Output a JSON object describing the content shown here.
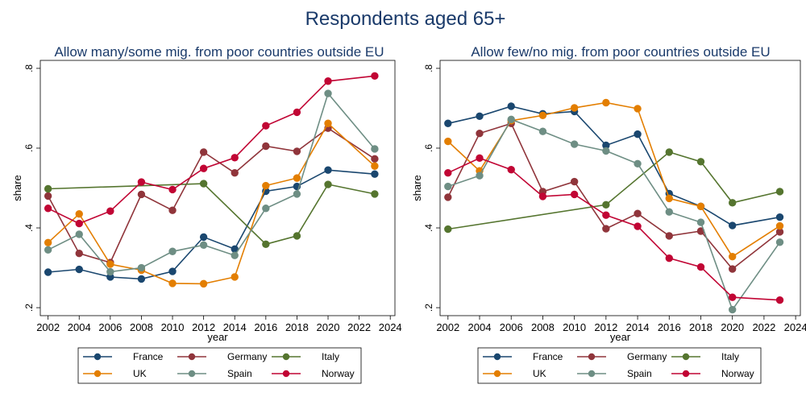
{
  "figure_title": "Respondents aged 65+",
  "chart_data": [
    {
      "type": "line",
      "title": "Allow many/some mig. from poor countries outside EU",
      "xlabel": "year",
      "ylabel": "share",
      "xlim": [
        2001.5,
        2024.3
      ],
      "ylim": [
        0.18,
        0.82
      ],
      "xticks": [
        2002,
        2004,
        2006,
        2008,
        2010,
        2012,
        2014,
        2016,
        2018,
        2020,
        2022,
        2024
      ],
      "xtick_labels": [
        "2002",
        "2004",
        "2006",
        "2008",
        "2010",
        "2012",
        "2014",
        "2016",
        "2018",
        "2020",
        "2022",
        "2024"
      ],
      "yticks": [
        0.2,
        0.4,
        0.6,
        0.8
      ],
      "ytick_labels": [
        ".2",
        ".4",
        ".6",
        ".8"
      ],
      "grid": false,
      "legend_position": "bottom",
      "series": [
        {
          "name": "France",
          "color": "#1a476f",
          "x": [
            2002,
            2004,
            2006,
            2008,
            2010,
            2012,
            2014,
            2016,
            2018,
            2020,
            2023
          ],
          "y": [
            0.289,
            0.296,
            0.277,
            0.272,
            0.291,
            0.377,
            0.347,
            0.492,
            0.504,
            0.545,
            0.535
          ]
        },
        {
          "name": "Germany",
          "color": "#90353b",
          "x": [
            2002,
            2004,
            2006,
            2008,
            2010,
            2012,
            2014,
            2016,
            2018,
            2020,
            2023
          ],
          "y": [
            0.48,
            0.336,
            0.313,
            0.484,
            0.444,
            0.59,
            0.538,
            0.605,
            0.592,
            0.65,
            0.573
          ]
        },
        {
          "name": "Italy",
          "color": "#55752f",
          "x": [
            2002,
            2012,
            2016,
            2018,
            2020,
            2023
          ],
          "y": [
            0.498,
            0.511,
            0.359,
            0.38,
            0.509,
            0.485
          ]
        },
        {
          "name": "UK",
          "color": "#e37e00",
          "x": [
            2002,
            2004,
            2006,
            2008,
            2010,
            2012,
            2014,
            2016,
            2018,
            2020,
            2023
          ],
          "y": [
            0.363,
            0.435,
            0.309,
            0.294,
            0.261,
            0.26,
            0.277,
            0.506,
            0.525,
            0.662,
            0.555
          ]
        },
        {
          "name": "Spain",
          "color": "#6e8e84",
          "x": [
            2002,
            2004,
            2006,
            2008,
            2010,
            2012,
            2014,
            2016,
            2018,
            2020,
            2023
          ],
          "y": [
            0.345,
            0.384,
            0.29,
            0.3,
            0.341,
            0.357,
            0.331,
            0.449,
            0.485,
            0.737,
            0.598
          ]
        },
        {
          "name": "Norway",
          "color": "#c10534",
          "x": [
            2002,
            2004,
            2006,
            2008,
            2010,
            2012,
            2014,
            2016,
            2018,
            2020,
            2023
          ],
          "y": [
            0.449,
            0.411,
            0.442,
            0.515,
            0.496,
            0.549,
            0.576,
            0.656,
            0.69,
            0.768,
            0.781
          ]
        }
      ]
    },
    {
      "type": "line",
      "title": "Allow few/no mig. from poor countries outside EU",
      "xlabel": "year",
      "ylabel": "share",
      "xlim": [
        2001.5,
        2024.3
      ],
      "ylim": [
        0.18,
        0.82
      ],
      "xticks": [
        2002,
        2004,
        2006,
        2008,
        2010,
        2012,
        2014,
        2016,
        2018,
        2020,
        2022,
        2024
      ],
      "xtick_labels": [
        "2002",
        "2004",
        "2006",
        "2008",
        "2010",
        "2012",
        "2014",
        "2016",
        "2018",
        "2020",
        "2022",
        "2024"
      ],
      "yticks": [
        0.2,
        0.4,
        0.6,
        0.8
      ],
      "ytick_labels": [
        ".2",
        ".4",
        ".6",
        ".8"
      ],
      "grid": false,
      "legend_position": "bottom",
      "series": [
        {
          "name": "France",
          "color": "#1a476f",
          "x": [
            2002,
            2004,
            2006,
            2008,
            2010,
            2012,
            2014,
            2016,
            2018,
            2020,
            2023
          ],
          "y": [
            0.662,
            0.68,
            0.705,
            0.686,
            0.692,
            0.607,
            0.635,
            0.486,
            0.454,
            0.406,
            0.427
          ]
        },
        {
          "name": "Germany",
          "color": "#90353b",
          "x": [
            2002,
            2004,
            2006,
            2008,
            2010,
            2012,
            2014,
            2016,
            2018,
            2020,
            2023
          ],
          "y": [
            0.477,
            0.637,
            0.662,
            0.491,
            0.516,
            0.398,
            0.436,
            0.38,
            0.392,
            0.297,
            0.39
          ]
        },
        {
          "name": "Italy",
          "color": "#55752f",
          "x": [
            2002,
            2012,
            2016,
            2018,
            2020,
            2023
          ],
          "y": [
            0.397,
            0.458,
            0.59,
            0.566,
            0.463,
            0.491
          ]
        },
        {
          "name": "UK",
          "color": "#e37e00",
          "x": [
            2002,
            2004,
            2006,
            2008,
            2010,
            2012,
            2014,
            2016,
            2018,
            2020,
            2023
          ],
          "y": [
            0.617,
            0.543,
            0.669,
            0.682,
            0.701,
            0.714,
            0.699,
            0.474,
            0.454,
            0.328,
            0.405
          ]
        },
        {
          "name": "Spain",
          "color": "#6e8e84",
          "x": [
            2002,
            2004,
            2006,
            2008,
            2010,
            2012,
            2014,
            2016,
            2018,
            2020,
            2023
          ],
          "y": [
            0.504,
            0.531,
            0.672,
            0.642,
            0.61,
            0.593,
            0.561,
            0.44,
            0.414,
            0.195,
            0.364
          ]
        },
        {
          "name": "Norway",
          "color": "#c10534",
          "x": [
            2002,
            2004,
            2006,
            2008,
            2010,
            2012,
            2014,
            2016,
            2018,
            2020,
            2023
          ],
          "y": [
            0.538,
            0.575,
            0.546,
            0.479,
            0.484,
            0.432,
            0.404,
            0.324,
            0.302,
            0.226,
            0.219
          ]
        }
      ]
    }
  ]
}
